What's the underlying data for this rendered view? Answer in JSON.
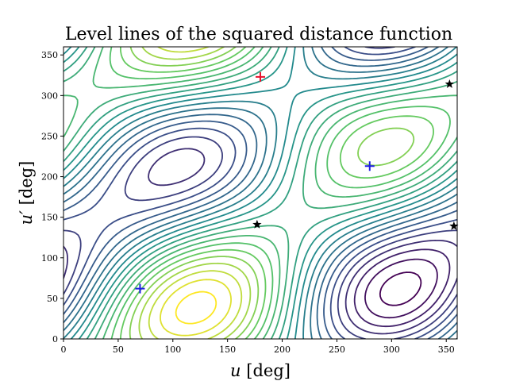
{
  "chart_data": {
    "type": "contour",
    "title": "Level lines of the squared distance function",
    "xlabel_var": "u",
    "xlabel_unit": "[deg]",
    "ylabel_var": "u′",
    "ylabel_unit": "[deg]",
    "xlim": [
      0,
      360
    ],
    "ylim": [
      0,
      360
    ],
    "xticks": [
      0,
      50,
      100,
      150,
      200,
      250,
      300,
      350
    ],
    "yticks": [
      0,
      50,
      100,
      150,
      200,
      250,
      300,
      350
    ],
    "colormap": [
      "#440154",
      "#3b528b",
      "#21908d",
      "#5dc963",
      "#fde725"
    ],
    "levels": 22,
    "markers": [
      {
        "type": "max",
        "symbol": "+",
        "color": "#e8112d",
        "x": 180,
        "y": 323
      },
      {
        "type": "min",
        "symbol": "+",
        "color": "#1f1fe0",
        "x": 70,
        "y": 62
      },
      {
        "type": "min",
        "symbol": "+",
        "color": "#1f1fe0",
        "x": 280,
        "y": 213
      },
      {
        "type": "saddle",
        "symbol": "star",
        "color": "#000000",
        "x": 177,
        "y": 141
      },
      {
        "type": "saddle",
        "symbol": "star",
        "color": "#000000",
        "x": 353,
        "y": 314
      },
      {
        "type": "saddle",
        "symbol": "star",
        "color": "#000000",
        "x": 357,
        "y": 139
      }
    ]
  }
}
